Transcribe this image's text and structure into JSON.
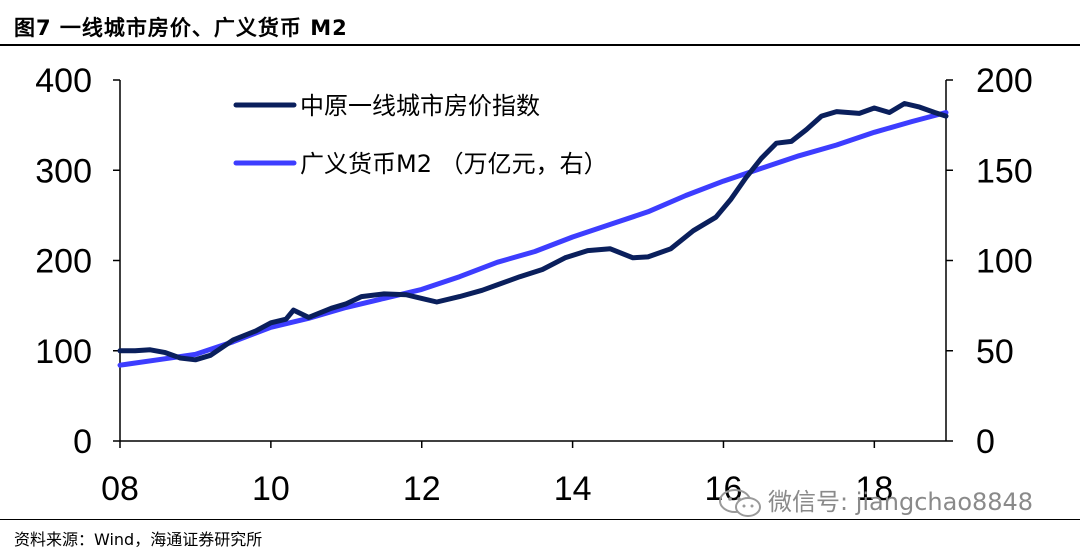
{
  "header": {
    "title": "图7   一线城市房价、广义货币 M2"
  },
  "footer": {
    "source": "资料来源：Wind，海通证券研究所"
  },
  "watermark": {
    "text": "微信号: jiangchao8848",
    "icon": "wechat-icon"
  },
  "colors": {
    "price": "#0a1f5c",
    "m2": "#3d3dff",
    "axis": "#000000"
  },
  "chart_data": {
    "type": "line",
    "title": "一线城市房价、广义货币 M2",
    "x_tick_labels": [
      "08",
      "10",
      "12",
      "14",
      "16",
      "18"
    ],
    "x_ticks": [
      2008,
      2010,
      2012,
      2014,
      2016,
      2018
    ],
    "xlim": [
      2008,
      2018.95
    ],
    "y_left": {
      "lim": [
        0,
        400
      ],
      "ticks": [
        0,
        100,
        200,
        300,
        400
      ],
      "tick_labels": [
        "0",
        "100",
        "200",
        "300",
        "400"
      ]
    },
    "y_right": {
      "lim": [
        0,
        200
      ],
      "ticks": [
        0,
        50,
        100,
        150,
        200
      ],
      "tick_labels": [
        "0",
        "50",
        "100",
        "150",
        "200"
      ]
    },
    "series": [
      {
        "name": "中原一线城市房价指数",
        "axis": "left",
        "x": [
          2008.0,
          2008.2,
          2008.4,
          2008.6,
          2008.8,
          2009.0,
          2009.2,
          2009.5,
          2009.8,
          2010.0,
          2010.2,
          2010.3,
          2010.5,
          2010.8,
          2011.0,
          2011.2,
          2011.5,
          2011.8,
          2012.0,
          2012.2,
          2012.5,
          2012.8,
          2013.0,
          2013.3,
          2013.6,
          2013.9,
          2014.2,
          2014.5,
          2014.8,
          2015.0,
          2015.3,
          2015.6,
          2015.9,
          2016.1,
          2016.3,
          2016.5,
          2016.7,
          2016.9,
          2017.1,
          2017.3,
          2017.5,
          2017.8,
          2018.0,
          2018.2,
          2018.4,
          2018.6,
          2018.8,
          2018.95
        ],
        "values": [
          100,
          100,
          101,
          98,
          92,
          90,
          95,
          112,
          122,
          131,
          135,
          145,
          137,
          147,
          152,
          160,
          163,
          162,
          158,
          154,
          160,
          167,
          173,
          182,
          190,
          203,
          211,
          213,
          203,
          204,
          213,
          233,
          248,
          268,
          292,
          313,
          330,
          332,
          345,
          360,
          365,
          363,
          369,
          364,
          374,
          370,
          364,
          360
        ]
      },
      {
        "name": "广义货币M2  （万亿元，右）",
        "axis": "right",
        "x": [
          2008.0,
          2008.5,
          2009.0,
          2009.5,
          2010.0,
          2010.5,
          2011.0,
          2011.5,
          2012.0,
          2012.5,
          2013.0,
          2013.5,
          2014.0,
          2014.5,
          2015.0,
          2015.5,
          2016.0,
          2016.5,
          2017.0,
          2017.5,
          2018.0,
          2018.5,
          2018.95
        ],
        "values": [
          42,
          45,
          48,
          55,
          63,
          68,
          74,
          79,
          84,
          91,
          99,
          105,
          113,
          120,
          127,
          136,
          144,
          151,
          158,
          164,
          171,
          177,
          182
        ]
      }
    ]
  }
}
